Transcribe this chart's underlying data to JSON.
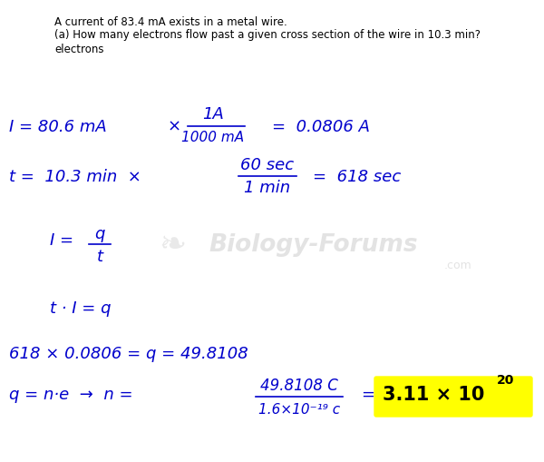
{
  "background_color": "#ffffff",
  "header_text_1": "A current of 83.4 mA exists in a metal wire.",
  "header_text_2": "(a) How many electrons flow past a given cross section of the wire in 10.3 min?",
  "header_text_3": "electrons",
  "blue": "#0000cc",
  "black": "#000000",
  "gray_wm": "#c8c8c8",
  "highlight_color": "#ffff00",
  "fig_width": 6.0,
  "fig_height": 5.1,
  "dpi": 100
}
